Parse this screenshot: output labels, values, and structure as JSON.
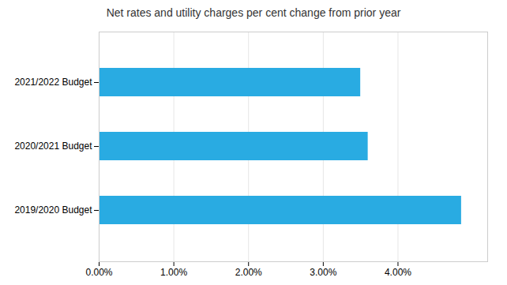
{
  "chart_data": {
    "type": "bar",
    "orientation": "horizontal",
    "title": "Net rates and utility charges per cent change from prior year",
    "categories": [
      "2019/2020 Budget",
      "2020/2021 Budget",
      "2021/2022 Budget"
    ],
    "values": [
      4.85,
      3.6,
      3.5
    ],
    "color": "#29ABE2",
    "xlim": [
      0,
      5.2
    ],
    "xticks": [
      {
        "value": 0.0,
        "label": "0.00%"
      },
      {
        "value": 1.0,
        "label": "1.00%"
      },
      {
        "value": 2.0,
        "label": "2.00%"
      },
      {
        "value": 3.0,
        "label": "3.00%"
      },
      {
        "value": 4.0,
        "label": "4.00%"
      }
    ],
    "grid": true
  }
}
